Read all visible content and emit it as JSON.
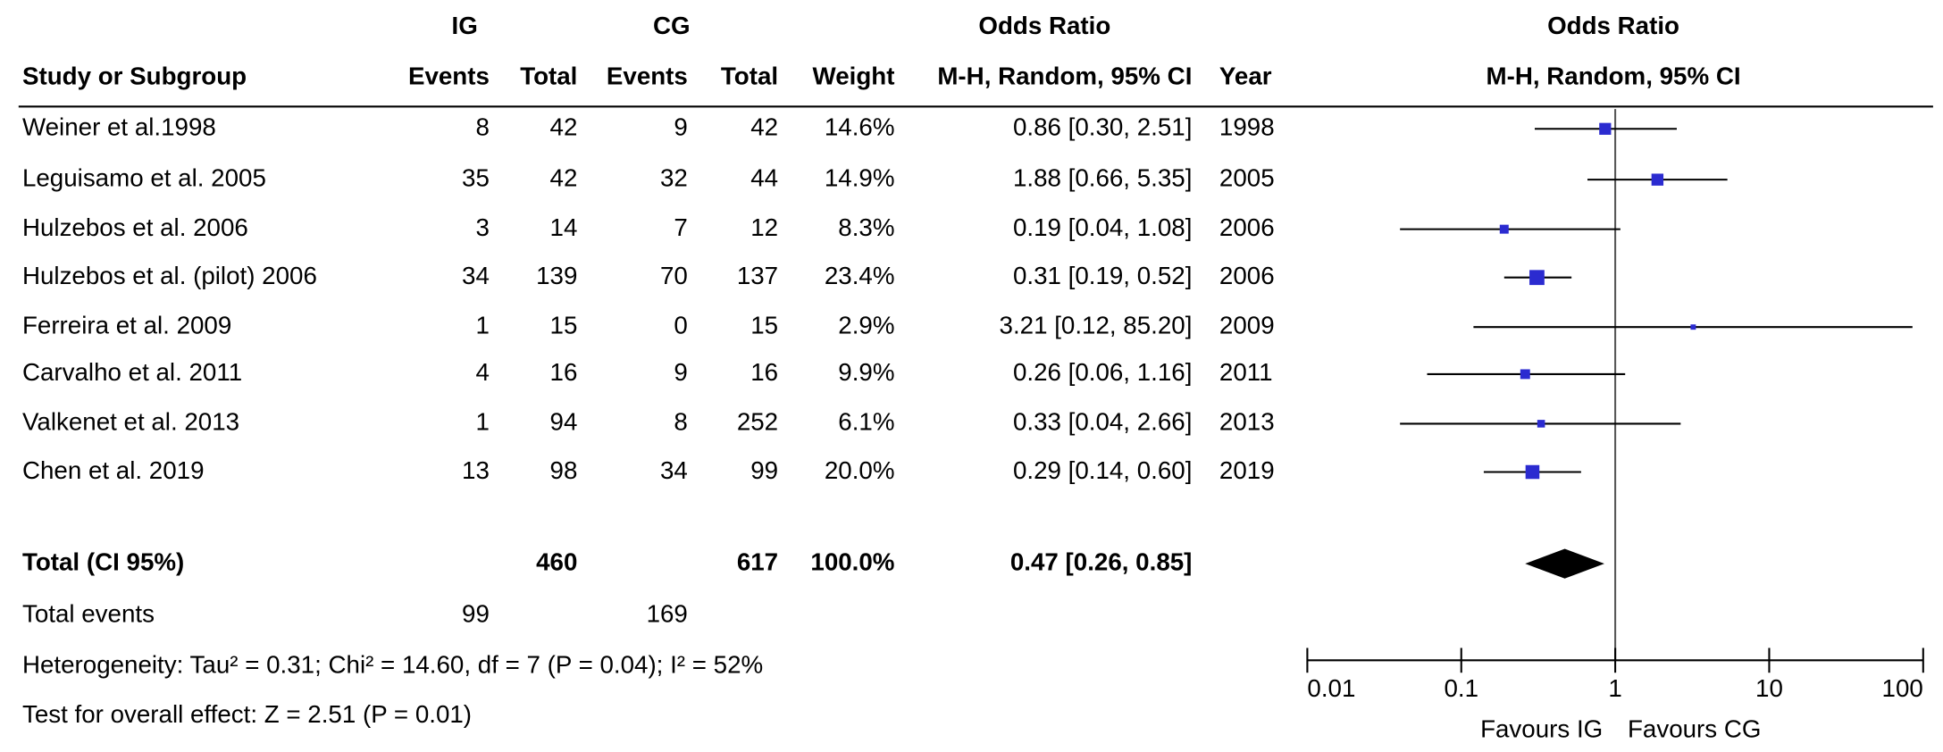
{
  "chart_data": {
    "type": "forest",
    "headers": {
      "ig": "IG",
      "cg": "CG",
      "or": "Odds Ratio",
      "study": "Study or Subgroup",
      "events_ig": "Events",
      "total_ig": "Total",
      "events_cg": "Events",
      "total_cg": "Total",
      "weight": "Weight",
      "method": "M-H, Random, 95% CI",
      "year": "Year",
      "plot_title": "Odds Ratio",
      "plot_method": "M-H, Random, 95% CI"
    },
    "studies": [
      {
        "name": "Weiner et al.1998",
        "ig_events": 8,
        "ig_total": 42,
        "cg_events": 9,
        "cg_total": 42,
        "weight": 14.6,
        "weight_label": "14.6%",
        "or": 0.86,
        "ci": [
          0.3,
          2.51
        ],
        "ci_label": "0.86 [0.30, 2.51]",
        "year": 1998
      },
      {
        "name": "Leguisamo et al. 2005",
        "ig_events": 35,
        "ig_total": 42,
        "cg_events": 32,
        "cg_total": 44,
        "weight": 14.9,
        "weight_label": "14.9%",
        "or": 1.88,
        "ci": [
          0.66,
          5.35
        ],
        "ci_label": "1.88 [0.66, 5.35]",
        "year": 2005
      },
      {
        "name": "Hulzebos et al. 2006",
        "ig_events": 3,
        "ig_total": 14,
        "cg_events": 7,
        "cg_total": 12,
        "weight": 8.3,
        "weight_label": "8.3%",
        "or": 0.19,
        "ci": [
          0.04,
          1.08
        ],
        "ci_label": "0.19 [0.04, 1.08]",
        "year": 2006
      },
      {
        "name": "Hulzebos et al. (pilot) 2006",
        "ig_events": 34,
        "ig_total": 139,
        "cg_events": 70,
        "cg_total": 137,
        "weight": 23.4,
        "weight_label": "23.4%",
        "or": 0.31,
        "ci": [
          0.19,
          0.52
        ],
        "ci_label": "0.31 [0.19, 0.52]",
        "year": 2006
      },
      {
        "name": "Ferreira et al. 2009",
        "ig_events": 1,
        "ig_total": 15,
        "cg_events": 0,
        "cg_total": 15,
        "weight": 2.9,
        "weight_label": "2.9%",
        "or": 3.21,
        "ci": [
          0.12,
          85.2
        ],
        "ci_label": "3.21 [0.12, 85.20]",
        "year": 2009
      },
      {
        "name": "Carvalho et al. 2011",
        "ig_events": 4,
        "ig_total": 16,
        "cg_events": 9,
        "cg_total": 16,
        "weight": 9.9,
        "weight_label": "9.9%",
        "or": 0.26,
        "ci": [
          0.06,
          1.16
        ],
        "ci_label": "0.26 [0.06, 1.16]",
        "year": 2011
      },
      {
        "name": "Valkenet et al. 2013",
        "ig_events": 1,
        "ig_total": 94,
        "cg_events": 8,
        "cg_total": 252,
        "weight": 6.1,
        "weight_label": "6.1%",
        "or": 0.33,
        "ci": [
          0.04,
          2.66
        ],
        "ci_label": "0.33 [0.04, 2.66]",
        "year": 2013
      },
      {
        "name": "Chen et al. 2019",
        "ig_events": 13,
        "ig_total": 98,
        "cg_events": 34,
        "cg_total": 99,
        "weight": 20.0,
        "weight_label": "20.0%",
        "or": 0.29,
        "ci": [
          0.14,
          0.6
        ],
        "ci_label": "0.29 [0.14, 0.60]",
        "year": 2019
      }
    ],
    "total": {
      "name": "Total (CI 95%)",
      "ig_total": 460,
      "cg_total": 617,
      "weight_label": "100.0%",
      "or": 0.47,
      "ci": [
        0.26,
        0.85
      ],
      "ci_label": "0.47 [0.26, 0.85]"
    },
    "total_events": {
      "name": "Total events",
      "ig": 99,
      "cg": 169
    },
    "heterogeneity": "Heterogeneity: Tau² = 0.31; Chi² = 14.60, df = 7 (P = 0.04); I² = 52%",
    "overall_effect": "Test for overall effect: Z = 2.51 (P = 0.01)",
    "xlim": [
      0.01,
      100
    ],
    "xticks": [
      0.01,
      0.1,
      1,
      10,
      100
    ],
    "log_x": true,
    "favours_left": "Favours IG",
    "favours_right": "Favours CG",
    "marker_color": "#2b2bd0",
    "ci_color": "#000000"
  }
}
